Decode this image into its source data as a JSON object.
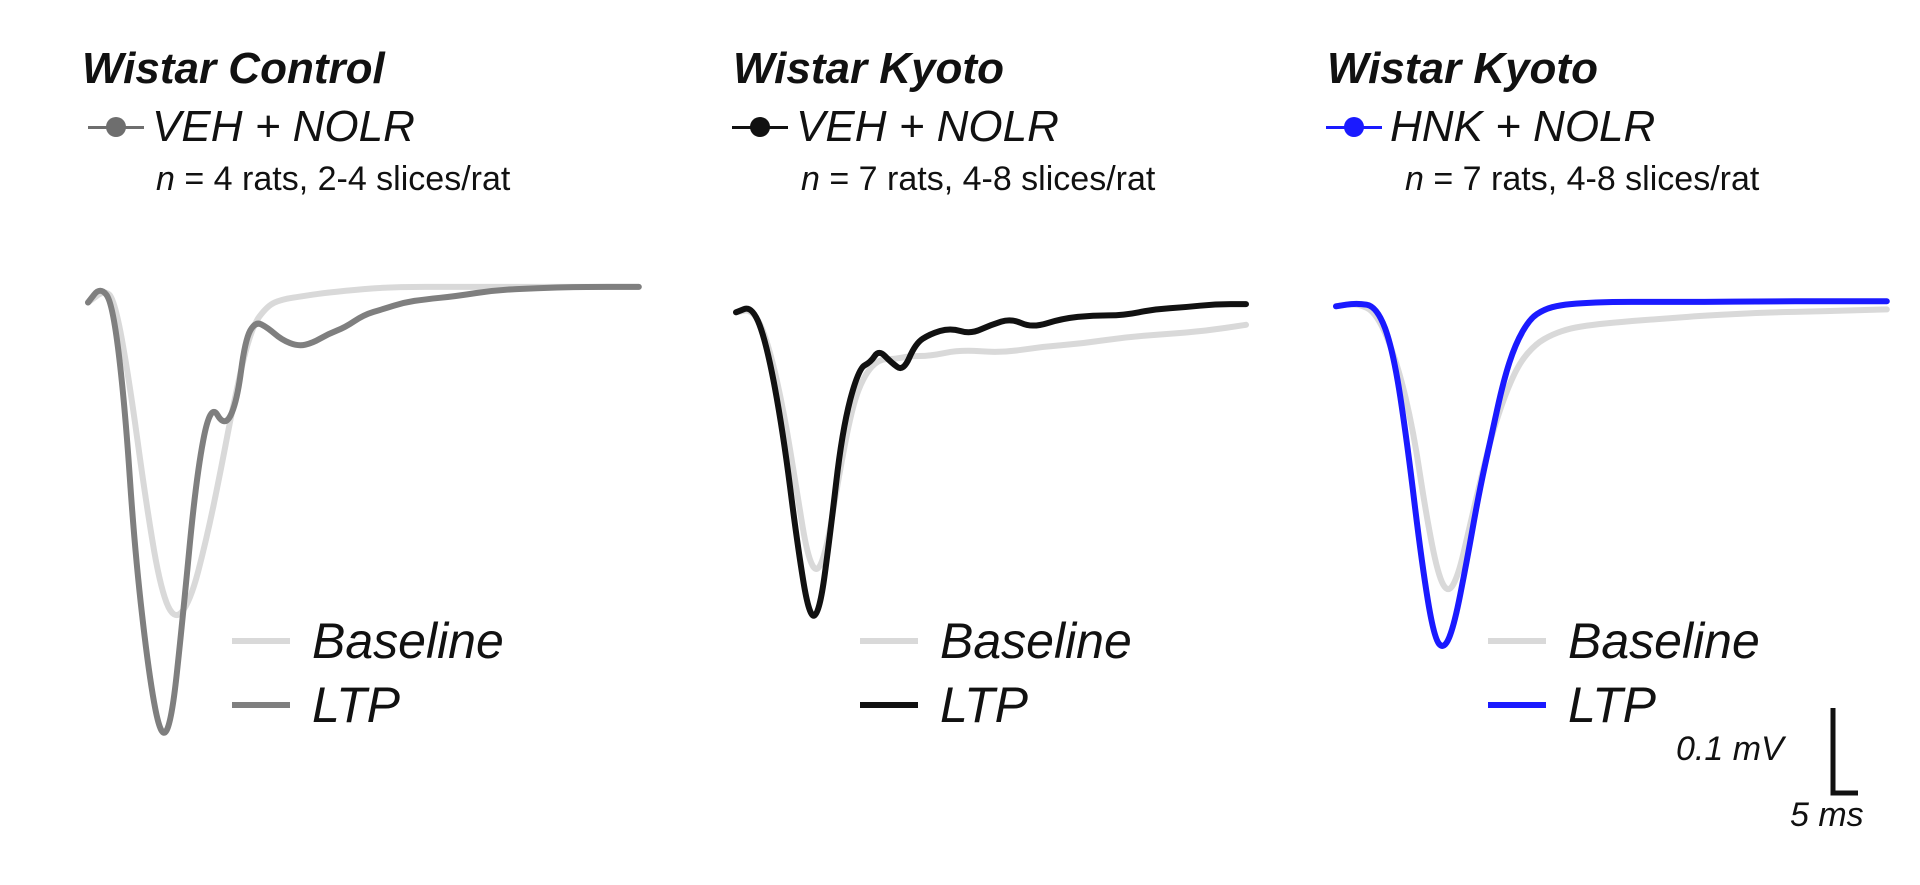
{
  "panels": [
    {
      "title": "Wistar Control",
      "group": "VEH + NOLR",
      "group_color": "#6e6e6e",
      "n_label": "n",
      "n_text": " = 4 rats, 2-4 slices/rat",
      "legend": [
        {
          "label": "Baseline",
          "color": "#d9d9d9"
        },
        {
          "label": "LTP",
          "color": "#7f7f7f"
        }
      ]
    },
    {
      "title": "Wistar Kyoto",
      "group": "VEH + NOLR",
      "group_color": "#111111",
      "n_label": "n",
      "n_text": " = 7 rats, 4-8 slices/rat",
      "legend": [
        {
          "label": "Baseline",
          "color": "#d9d9d9"
        },
        {
          "label": "LTP",
          "color": "#111111"
        }
      ]
    },
    {
      "title": "Wistar Kyoto",
      "group": "HNK + NOLR",
      "group_color": "#1a1aff",
      "n_label": "n",
      "n_text": " = 7 rats, 4-8 slices/rat",
      "legend": [
        {
          "label": "Baseline",
          "color": "#d9d9d9"
        },
        {
          "label": "LTP",
          "color": "#1a1aff"
        }
      ]
    }
  ],
  "scale_bar": {
    "voltage": "0.1 mV",
    "time": "5 ms"
  },
  "chart_data": [
    {
      "type": "line",
      "title": "Wistar Control",
      "x_unit": "ms",
      "y_unit": "mV",
      "x_range": [
        0,
        27
      ],
      "series": [
        {
          "name": "Baseline",
          "color": "#d9d9d9",
          "x": [
            0,
            0.8,
            1.3,
            2,
            2.8,
            3.5,
            4.2,
            5,
            5.8,
            6.5,
            7.2,
            8,
            8.8,
            9.5,
            10.5,
            11.5,
            13,
            15,
            18,
            22,
            27
          ],
          "y": [
            -0.02,
            0.0,
            -0.015,
            -0.14,
            -0.33,
            -0.47,
            -0.53,
            -0.5,
            -0.4,
            -0.29,
            -0.17,
            -0.06,
            -0.025,
            -0.015,
            -0.01,
            -0.005,
            0.0,
            0.005,
            0.005,
            0.005,
            0.005
          ]
        },
        {
          "name": "LTP",
          "color": "#7f7f7f",
          "x": [
            0,
            0.6,
            1.2,
            1.8,
            2.3,
            3,
            3.6,
            4.1,
            4.6,
            5.3,
            6,
            6.7,
            7.3,
            7.7,
            8.2,
            8.8,
            9.5,
            10.3,
            11,
            11.8,
            12.6,
            13.5,
            14.5,
            15.5,
            16.5,
            18,
            20,
            22,
            24,
            27
          ],
          "y": [
            -0.02,
            0.005,
            -0.02,
            -0.18,
            -0.42,
            -0.62,
            -0.72,
            -0.69,
            -0.54,
            -0.3,
            -0.18,
            -0.22,
            -0.18,
            -0.08,
            -0.05,
            -0.06,
            -0.08,
            -0.09,
            -0.085,
            -0.07,
            -0.06,
            -0.04,
            -0.03,
            -0.02,
            -0.015,
            -0.01,
            0.0,
            0.003,
            0.005,
            0.005
          ]
        }
      ]
    },
    {
      "type": "line",
      "title": "Wistar Kyoto",
      "x_unit": "ms",
      "y_unit": "mV",
      "x_range": [
        0,
        25
      ],
      "series": [
        {
          "name": "Baseline",
          "color": "#d9d9d9",
          "x": [
            0,
            0.8,
            1.5,
            2.3,
            3,
            3.5,
            4,
            4.5,
            5,
            5.7,
            6.3,
            7,
            7.8,
            8.5,
            9.5,
            11,
            13,
            15,
            17,
            19,
            21,
            23,
            25
          ],
          "y": [
            -0.01,
            -0.005,
            -0.05,
            -0.16,
            -0.3,
            -0.4,
            -0.43,
            -0.38,
            -0.28,
            -0.16,
            -0.11,
            -0.085,
            -0.085,
            -0.08,
            -0.08,
            -0.07,
            -0.075,
            -0.065,
            -0.06,
            -0.05,
            -0.045,
            -0.04,
            -0.03
          ]
        },
        {
          "name": "LTP",
          "color": "#111111",
          "x": [
            0,
            0.8,
            1.5,
            2.3,
            3,
            3.6,
            4.1,
            4.6,
            5.2,
            6,
            6.6,
            7,
            7.6,
            8.2,
            8.8,
            9.5,
            10.5,
            11.5,
            12.5,
            13.5,
            14.5,
            16,
            17.5,
            19,
            20.5,
            22,
            23.5,
            25
          ],
          "y": [
            -0.01,
            0.0,
            -0.06,
            -0.2,
            -0.38,
            -0.5,
            -0.49,
            -0.37,
            -0.2,
            -0.1,
            -0.09,
            -0.07,
            -0.09,
            -0.105,
            -0.06,
            -0.045,
            -0.035,
            -0.045,
            -0.03,
            -0.02,
            -0.035,
            -0.02,
            -0.015,
            -0.015,
            -0.005,
            -0.002,
            0.003,
            0.003
          ]
        }
      ]
    },
    {
      "type": "line",
      "title": "Wistar Kyoto",
      "x_unit": "ms",
      "y_unit": "mV",
      "x_range": [
        0,
        27
      ],
      "series": [
        {
          "name": "Baseline",
          "color": "#d9d9d9",
          "x": [
            0,
            1,
            2,
            3,
            3.8,
            4.4,
            5,
            5.5,
            6,
            6.5,
            7,
            7.6,
            8.3,
            9,
            9.8,
            10.6,
            11.5,
            12.5,
            14,
            16,
            18,
            21,
            24,
            27
          ],
          "y": [
            -0.01,
            -0.005,
            -0.02,
            -0.1,
            -0.21,
            -0.34,
            -0.44,
            -0.47,
            -0.44,
            -0.37,
            -0.3,
            -0.22,
            -0.15,
            -0.1,
            -0.07,
            -0.055,
            -0.045,
            -0.04,
            -0.035,
            -0.03,
            -0.025,
            -0.02,
            -0.018,
            -0.015
          ]
        },
        {
          "name": "LTP",
          "color": "#1a1aff",
          "x": [
            0,
            1,
            2,
            2.8,
            3.5,
            4.2,
            4.8,
            5.3,
            5.8,
            6.4,
            7,
            7.6,
            8.2,
            8.8,
            9.5,
            10.2,
            11,
            12,
            13.5,
            15.5,
            18,
            21,
            24,
            27
          ],
          "y": [
            -0.01,
            -0.005,
            -0.01,
            -0.08,
            -0.23,
            -0.42,
            -0.54,
            -0.56,
            -0.52,
            -0.42,
            -0.31,
            -0.22,
            -0.13,
            -0.07,
            -0.03,
            -0.015,
            -0.008,
            -0.005,
            -0.003,
            -0.003,
            -0.003,
            -0.002,
            -0.002,
            -0.002
          ]
        }
      ]
    }
  ]
}
